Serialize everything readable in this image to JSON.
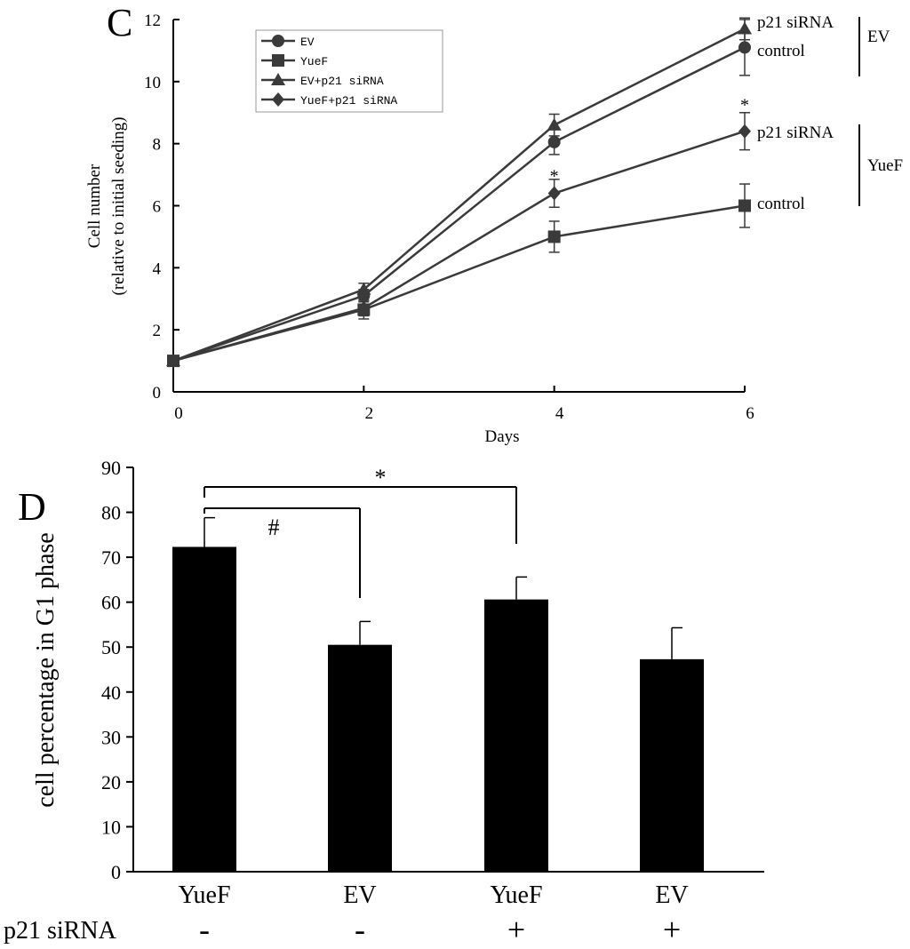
{
  "colors": {
    "line": "#3a3a3a",
    "bar": "#000000",
    "axis": "#000000",
    "background": "#ffffff"
  },
  "chart_data": [
    {
      "panel": "C",
      "type": "line",
      "xlabel": "Days",
      "ylabel": "Cell number",
      "ylabel2": "(relative to initial seeding)",
      "xlim": [
        0,
        6
      ],
      "ylim": [
        0,
        12
      ],
      "xticks": [
        0,
        2,
        4,
        6
      ],
      "yticks": [
        0,
        2,
        4,
        6,
        8,
        10,
        12
      ],
      "legend_position": "top-left",
      "series": [
        {
          "name": "EV",
          "marker": "circle",
          "x": [
            0,
            2,
            4,
            6
          ],
          "y": [
            1.0,
            3.1,
            8.05,
            11.1
          ],
          "err": [
            0.0,
            0.2,
            0.4,
            0.9
          ]
        },
        {
          "name": "YueF",
          "marker": "square",
          "x": [
            0,
            2,
            4,
            6
          ],
          "y": [
            1.0,
            2.65,
            5.0,
            6.0
          ],
          "err": [
            0.0,
            0.3,
            0.5,
            0.7
          ]
        },
        {
          "name": "EV+p21 siRNA",
          "marker": "triangle",
          "x": [
            0,
            2,
            4,
            6
          ],
          "y": [
            1.0,
            3.3,
            8.6,
            11.7
          ],
          "err": [
            0.0,
            0.2,
            0.35,
            0.35
          ]
        },
        {
          "name": "YueF+p21 siRNA",
          "marker": "diamond",
          "x": [
            0,
            2,
            4,
            6
          ],
          "y": [
            1.0,
            2.7,
            6.4,
            8.4
          ],
          "err": [
            0.0,
            0.25,
            0.45,
            0.6
          ]
        }
      ],
      "annotations": [
        {
          "text": "*",
          "x": 4,
          "y": 7.0
        },
        {
          "text": "*",
          "x": 6,
          "y": 9.3
        }
      ],
      "side_labels": [
        "p21 siRNA",
        "control",
        "EV",
        "p21 siRNA",
        "control",
        "YueF"
      ]
    },
    {
      "panel": "D",
      "type": "bar",
      "ylabel": "cell percentage in G1 phase",
      "ylim": [
        0,
        90
      ],
      "yticks": [
        0,
        10,
        20,
        30,
        40,
        50,
        60,
        70,
        80,
        90
      ],
      "categories": [
        "YueF",
        "EV",
        "YueF",
        "EV"
      ],
      "values": [
        72.3,
        50.5,
        60.6,
        47.3
      ],
      "errors": [
        6.5,
        5.2,
        5.0,
        7.0
      ],
      "row_label": "p21 siRNA",
      "treatment": [
        "-",
        "-",
        "+",
        "+"
      ],
      "significance": [
        {
          "symbol": "*",
          "from": 0,
          "to": 2
        },
        {
          "symbol": "#",
          "from": 0,
          "to": 1
        }
      ]
    }
  ]
}
